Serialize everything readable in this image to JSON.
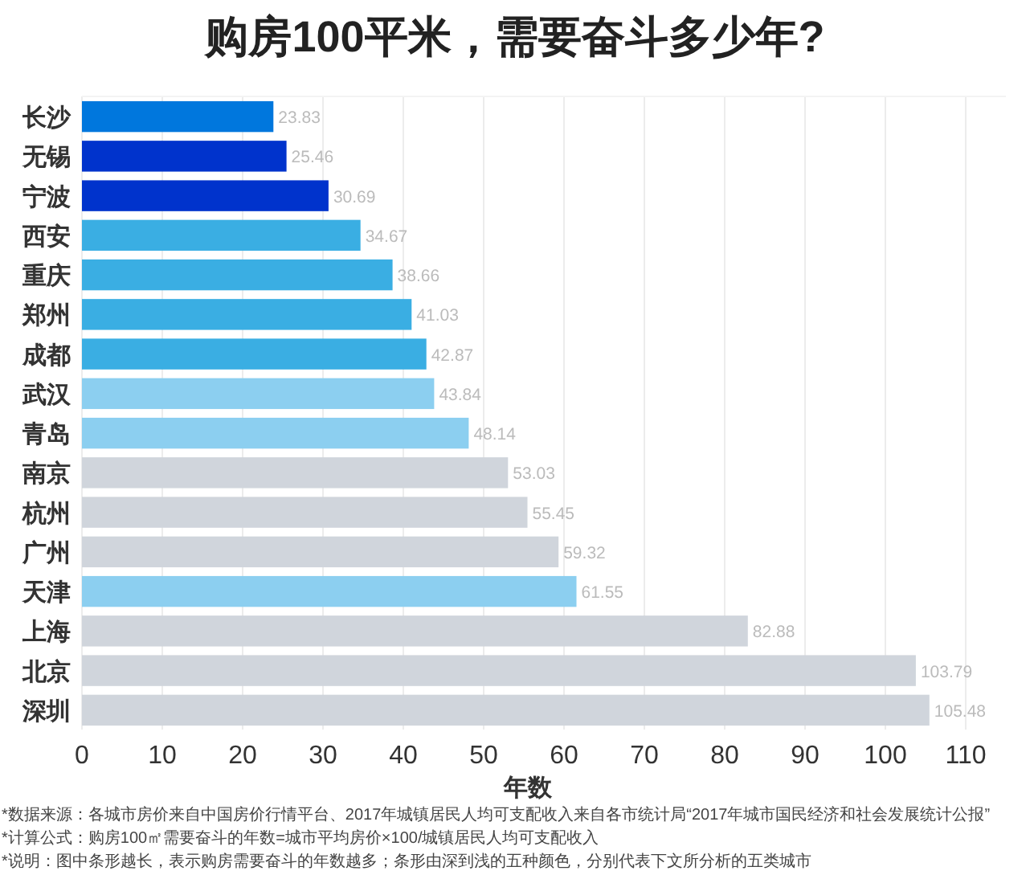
{
  "chart_data": {
    "type": "bar",
    "orientation": "horizontal",
    "title": "购房100平米，需要奋斗多少年?",
    "xlabel": "年数",
    "categories": [
      "长沙",
      "无锡",
      "宁波",
      "西安",
      "重庆",
      "郑州",
      "成都",
      "武汉",
      "青岛",
      "南京",
      "杭州",
      "广州",
      "天津",
      "上海",
      "北京",
      "深圳"
    ],
    "values": [
      23.83,
      25.46,
      30.69,
      34.67,
      38.66,
      41.03,
      42.87,
      43.84,
      48.14,
      53.03,
      55.45,
      59.32,
      61.55,
      82.88,
      103.79,
      105.48
    ],
    "colors": [
      "#0077dd",
      "#0033cc",
      "#0033cc",
      "#3aaee3",
      "#3aaee3",
      "#3aaee3",
      "#3aaee3",
      "#8ccff0",
      "#8ccff0",
      "#d0d5dc",
      "#d0d5dc",
      "#d0d5dc",
      "#8ccff0",
      "#d0d5dc",
      "#d0d5dc",
      "#d0d5dc"
    ],
    "xlim": [
      0,
      115
    ],
    "xticks": [
      0,
      10,
      20,
      30,
      40,
      50,
      60,
      70,
      80,
      90,
      100,
      110
    ],
    "grid": "x",
    "data_labels": true,
    "annotations": [
      "*数据来源：各城市房价来自中国房价行情平台、2017年城镇居民人均可支配收入来自各市统计局“2017年城市国民经济和社会发展统计公报”",
      "*计算公式：购房100㎡需要奋斗的年数=城市平均房价×100/城镇居民人均可支配收入",
      "*说明：图中条形越长，表示购房需要奋斗的年数越多；条形由深到浅的五种颜色，分别代表下文所分析的五类城市"
    ]
  }
}
